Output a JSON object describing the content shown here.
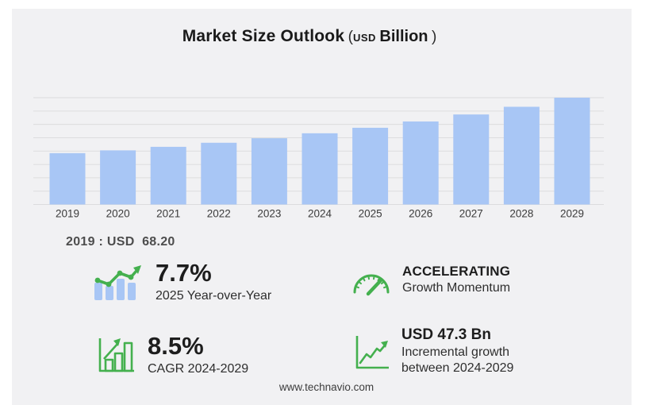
{
  "title": {
    "main": "Market Size Outlook",
    "open_paren": "(",
    "unit_small": "USD",
    "unit_bold": "Billion",
    "close_paren": ")"
  },
  "chart_data": {
    "type": "bar",
    "title": "Market Size Outlook (USD Billion)",
    "categories": [
      "2019",
      "2020",
      "2021",
      "2022",
      "2023",
      "2024",
      "2025",
      "2026",
      "2027",
      "2028",
      "2029"
    ],
    "values": [
      68.2,
      71.9,
      76.6,
      82.0,
      88.0,
      94.6,
      101.9,
      110.3,
      119.6,
      129.8,
      141.9
    ],
    "xlabel": "",
    "ylabel": "USD Billion",
    "ylim": [
      0,
      142
    ],
    "grid": "horizontal",
    "gridline_count": 9,
    "legend": "none",
    "bar_color": "#a8c6f5",
    "gridline_color": "#dcdcde",
    "tick_label_color": "#3b3b3b"
  },
  "chart_note": "2019 : USD  68.20",
  "stats": [
    {
      "icon": "bar-trend-icon",
      "value": "7.7%",
      "label": "2025 Year-over-Year"
    },
    {
      "icon": "gauge-icon",
      "value": "ACCELERATING",
      "label": "Growth Momentum"
    },
    {
      "icon": "bar-growth-icon",
      "value": "8.5%",
      "label": "CAGR 2024-2029"
    },
    {
      "icon": "trend-line-icon",
      "value": "USD 47.3 Bn",
      "label": "Incremental growth between 2024-2029"
    }
  ],
  "footer": {
    "url": "www.technavio.com"
  },
  "colors": {
    "accent_green": "#44b04e",
    "bar_blue": "#a8c6f5",
    "card_bg": "#f1f1f3"
  }
}
